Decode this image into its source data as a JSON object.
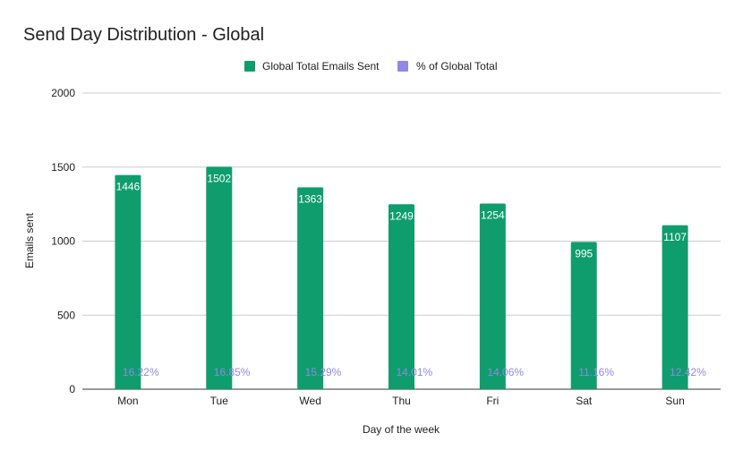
{
  "chart_data": {
    "type": "bar",
    "title": "Send Day Distribution - Global",
    "xlabel": "Day of the week",
    "ylabel": "Emails sent",
    "ylim": [
      0,
      2000
    ],
    "yticks": [
      0,
      500,
      1000,
      1500,
      2000
    ],
    "grid": true,
    "legend_position": "top",
    "categories": [
      "Mon",
      "Tue",
      "Wed",
      "Thu",
      "Fri",
      "Sat",
      "Sun"
    ],
    "series": [
      {
        "name": "Global Total Emails Sent",
        "color": "#0f9d6e",
        "values": [
          1446,
          1502,
          1363,
          1249,
          1254,
          995,
          1107
        ],
        "labels": [
          "1446",
          "1502",
          "1363",
          "1249",
          "1254",
          "995",
          "1107"
        ]
      },
      {
        "name": "% of Global Total",
        "color": "#9188e6",
        "values": [
          16.22,
          16.85,
          15.29,
          14.01,
          14.06,
          11.16,
          12.42
        ],
        "labels": [
          "16.22%",
          "16.85%",
          "15.29%",
          "14.01%",
          "14.06%",
          "11.16%",
          "12.42%"
        ]
      }
    ]
  }
}
